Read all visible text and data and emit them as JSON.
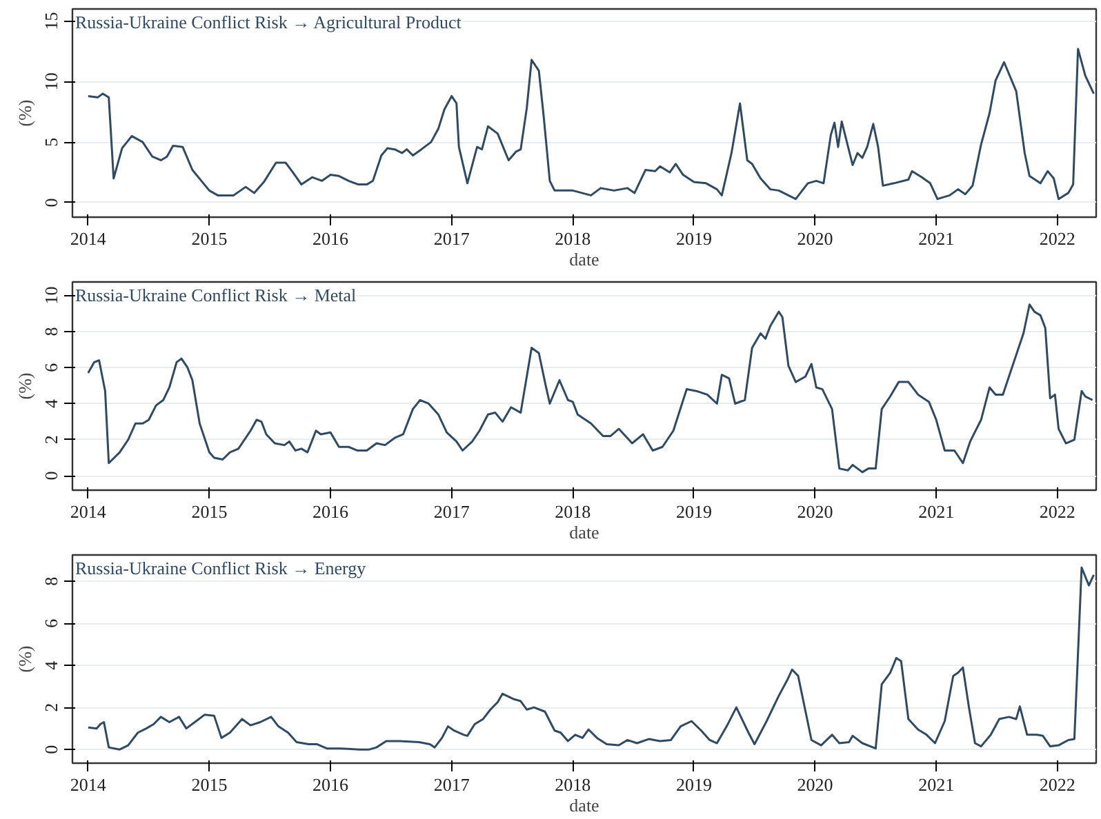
{
  "chart_data": [
    {
      "type": "line",
      "title": "Russia-Ukraine Conflict Risk → Agricultural Product",
      "xlabel": "date",
      "ylabel": "(%)",
      "color": "#2f4a63",
      "grid": "y",
      "xlim": [
        2013.87,
        2022.32
      ],
      "ylim": [
        -1.2,
        16
      ],
      "xticks": [
        2014,
        2015,
        2016,
        2017,
        2018,
        2019,
        2020,
        2021,
        2022
      ],
      "yticks": [
        0,
        5,
        10,
        15
      ],
      "x": [
        2014.0,
        2014.08,
        2014.12,
        2014.17,
        2014.21,
        2014.28,
        2014.36,
        2014.45,
        2014.53,
        2014.6,
        2014.65,
        2014.7,
        2014.78,
        2014.86,
        2015.0,
        2015.07,
        2015.2,
        2015.3,
        2015.37,
        2015.45,
        2015.55,
        2015.63,
        2015.69,
        2015.76,
        2015.85,
        2015.93,
        2016.0,
        2016.07,
        2016.15,
        2016.23,
        2016.3,
        2016.35,
        2016.42,
        2016.47,
        2016.53,
        2016.59,
        2016.63,
        2016.68,
        2016.75,
        2016.83,
        2016.89,
        2016.94,
        2017.0,
        2017.04,
        2017.06,
        2017.13,
        2017.21,
        2017.25,
        2017.3,
        2017.38,
        2017.47,
        2017.53,
        2017.57,
        2017.62,
        2017.66,
        2017.72,
        2017.76,
        2017.81,
        2017.85,
        2018.0,
        2018.15,
        2018.23,
        2018.34,
        2018.45,
        2018.51,
        2018.6,
        2018.68,
        2018.72,
        2018.8,
        2018.85,
        2018.91,
        2019.0,
        2019.1,
        2019.19,
        2019.23,
        2019.31,
        2019.38,
        2019.44,
        2019.48,
        2019.55,
        2019.63,
        2019.7,
        2019.84,
        2019.94,
        2020.01,
        2020.07,
        2020.13,
        2020.16,
        2020.19,
        2020.22,
        2020.31,
        2020.35,
        2020.39,
        2020.43,
        2020.48,
        2020.52,
        2020.56,
        2020.65,
        2020.77,
        2020.8,
        2020.88,
        2020.95,
        2021.01,
        2021.11,
        2021.18,
        2021.24,
        2021.3,
        2021.37,
        2021.44,
        2021.49,
        2021.56,
        2021.66,
        2021.73,
        2021.77,
        2021.86,
        2021.92,
        2021.97,
        2022.01,
        2022.09,
        2022.13,
        2022.17,
        2022.23,
        2022.3
      ],
      "values": [
        8.8,
        8.7,
        9.0,
        8.7,
        2.0,
        4.5,
        5.5,
        5.0,
        3.8,
        3.5,
        3.8,
        4.7,
        4.6,
        2.7,
        1.0,
        0.6,
        0.6,
        1.3,
        0.8,
        1.7,
        3.3,
        3.3,
        2.5,
        1.5,
        2.1,
        1.8,
        2.3,
        2.2,
        1.8,
        1.5,
        1.5,
        1.8,
        3.9,
        4.5,
        4.4,
        4.1,
        4.4,
        3.9,
        4.4,
        5.0,
        6.1,
        7.7,
        8.8,
        8.2,
        4.6,
        1.6,
        4.6,
        4.4,
        6.3,
        5.7,
        3.5,
        4.2,
        4.4,
        7.8,
        11.8,
        10.9,
        7.1,
        1.8,
        1.0,
        1.0,
        0.6,
        1.2,
        1.0,
        1.2,
        0.8,
        2.7,
        2.6,
        3.0,
        2.5,
        3.2,
        2.3,
        1.7,
        1.6,
        1.1,
        0.6,
        4.1,
        8.2,
        3.5,
        3.2,
        2.0,
        1.1,
        1.0,
        0.3,
        1.6,
        1.8,
        1.6,
        5.6,
        6.6,
        4.6,
        6.7,
        3.1,
        4.1,
        3.7,
        4.6,
        6.5,
        4.6,
        1.4,
        1.6,
        1.9,
        2.6,
        2.1,
        1.6,
        0.3,
        0.6,
        1.1,
        0.7,
        1.4,
        4.8,
        7.4,
        10.1,
        11.6,
        9.2,
        4.1,
        2.2,
        1.6,
        2.6,
        2.0,
        0.3,
        0.8,
        1.5,
        12.7,
        10.5,
        9.0
      ]
    },
    {
      "type": "line",
      "title": "Russia-Ukraine Conflict Risk → Metal",
      "xlabel": "date",
      "ylabel": "(%)",
      "color": "#2f4a63",
      "grid": "y",
      "xlim": [
        2013.87,
        2022.32
      ],
      "ylim": [
        -0.8,
        10.75
      ],
      "xticks": [
        2014,
        2015,
        2016,
        2017,
        2018,
        2019,
        2020,
        2021,
        2022
      ],
      "yticks": [
        0,
        2,
        4,
        6,
        8,
        10
      ],
      "x": [
        2014.0,
        2014.05,
        2014.09,
        2014.14,
        2014.17,
        2014.26,
        2014.33,
        2014.39,
        2014.45,
        2014.5,
        2014.56,
        2014.62,
        2014.67,
        2014.73,
        2014.77,
        2014.82,
        2014.86,
        2014.92,
        2015.0,
        2015.04,
        2015.11,
        2015.17,
        2015.24,
        2015.34,
        2015.39,
        2015.43,
        2015.47,
        2015.54,
        2015.62,
        2015.66,
        2015.71,
        2015.76,
        2015.81,
        2015.88,
        2015.92,
        2016.0,
        2016.07,
        2016.15,
        2016.22,
        2016.3,
        2016.38,
        2016.45,
        2016.53,
        2016.6,
        2016.68,
        2016.74,
        2016.81,
        2016.89,
        2016.96,
        2017.04,
        2017.09,
        2017.17,
        2017.23,
        2017.3,
        2017.36,
        2017.42,
        2017.49,
        2017.57,
        2017.66,
        2017.72,
        2017.77,
        2017.81,
        2017.89,
        2017.96,
        2018.0,
        2018.04,
        2018.15,
        2018.25,
        2018.31,
        2018.38,
        2018.49,
        2018.58,
        2018.66,
        2018.74,
        2018.83,
        2018.94,
        2019.02,
        2019.11,
        2019.19,
        2019.23,
        2019.29,
        2019.34,
        2019.42,
        2019.48,
        2019.55,
        2019.59,
        2019.63,
        2019.7,
        2019.73,
        2019.78,
        2019.84,
        2019.92,
        2019.97,
        2020.01,
        2020.06,
        2020.14,
        2020.2,
        2020.27,
        2020.31,
        2020.39,
        2020.44,
        2020.5,
        2020.55,
        2020.62,
        2020.69,
        2020.77,
        2020.85,
        2020.94,
        2021.0,
        2021.07,
        2021.15,
        2021.22,
        2021.28,
        2021.37,
        2021.44,
        2021.49,
        2021.55,
        2021.6,
        2021.72,
        2021.77,
        2021.81,
        2021.86,
        2021.9,
        2021.94,
        2021.98,
        2022.01,
        2022.07,
        2022.14,
        2022.2,
        2022.23,
        2022.29
      ],
      "values": [
        5.7,
        6.3,
        6.4,
        4.7,
        0.7,
        1.3,
        2.0,
        2.9,
        2.9,
        3.1,
        3.9,
        4.2,
        4.9,
        6.3,
        6.5,
        6.0,
        5.3,
        2.9,
        1.3,
        1.0,
        0.9,
        1.3,
        1.5,
        2.5,
        3.1,
        3.0,
        2.3,
        1.8,
        1.7,
        1.9,
        1.4,
        1.5,
        1.3,
        2.5,
        2.3,
        2.4,
        1.6,
        1.6,
        1.4,
        1.4,
        1.8,
        1.7,
        2.1,
        2.3,
        3.7,
        4.2,
        4.0,
        3.4,
        2.4,
        1.9,
        1.4,
        1.9,
        2.5,
        3.4,
        3.5,
        3.0,
        3.8,
        3.5,
        7.1,
        6.8,
        5.2,
        4.0,
        5.3,
        4.2,
        4.1,
        3.4,
        2.9,
        2.2,
        2.2,
        2.6,
        1.8,
        2.3,
        1.4,
        1.6,
        2.5,
        4.8,
        4.7,
        4.5,
        4.0,
        5.6,
        5.4,
        4.0,
        4.2,
        7.1,
        7.9,
        7.6,
        8.3,
        9.1,
        8.8,
        6.1,
        5.2,
        5.5,
        6.2,
        4.9,
        4.8,
        3.7,
        0.4,
        0.3,
        0.6,
        0.2,
        0.4,
        0.4,
        3.7,
        4.4,
        5.2,
        5.2,
        4.5,
        4.1,
        3.1,
        1.4,
        1.4,
        0.7,
        1.9,
        3.1,
        4.9,
        4.5,
        4.5,
        5.5,
        7.9,
        9.5,
        9.1,
        8.9,
        8.2,
        4.3,
        4.5,
        2.6,
        1.8,
        2.0,
        4.7,
        4.4,
        4.2
      ]
    },
    {
      "type": "line",
      "title": "Russia-Ukraine Conflict Risk → Energy",
      "xlabel": "date",
      "ylabel": "(%)",
      "color": "#2f4a63",
      "grid": "y",
      "xlim": [
        2013.87,
        2022.32
      ],
      "ylim": [
        -0.65,
        9.25
      ],
      "xticks": [
        2014,
        2015,
        2016,
        2017,
        2018,
        2019,
        2020,
        2021,
        2022
      ],
      "yticks": [
        0,
        2,
        4,
        6,
        8
      ],
      "x": [
        2014.0,
        2014.07,
        2014.1,
        2014.13,
        2014.17,
        2014.26,
        2014.33,
        2014.41,
        2014.48,
        2014.54,
        2014.6,
        2014.67,
        2014.75,
        2014.81,
        2014.88,
        2014.96,
        2015.04,
        2015.1,
        2015.17,
        2015.27,
        2015.34,
        2015.42,
        2015.51,
        2015.57,
        2015.65,
        2015.72,
        2015.82,
        2015.89,
        2015.97,
        2016.08,
        2016.24,
        2016.32,
        2016.38,
        2016.46,
        2016.57,
        2016.73,
        2016.82,
        2016.86,
        2016.92,
        2016.97,
        2017.02,
        2017.1,
        2017.13,
        2017.19,
        2017.26,
        2017.32,
        2017.38,
        2017.42,
        2017.51,
        2017.57,
        2017.62,
        2017.68,
        2017.77,
        2017.85,
        2017.9,
        2017.96,
        2018.02,
        2018.08,
        2018.13,
        2018.2,
        2018.28,
        2018.38,
        2018.45,
        2018.53,
        2018.63,
        2018.72,
        2018.81,
        2018.89,
        2018.98,
        2019.06,
        2019.13,
        2019.19,
        2019.27,
        2019.35,
        2019.45,
        2019.5,
        2019.6,
        2019.7,
        2019.77,
        2019.81,
        2019.86,
        2019.97,
        2020.05,
        2020.14,
        2020.2,
        2020.28,
        2020.31,
        2020.39,
        2020.5,
        2020.55,
        2020.62,
        2020.67,
        2020.71,
        2020.77,
        2020.85,
        2020.92,
        2020.99,
        2021.07,
        2021.14,
        2021.18,
        2021.22,
        2021.27,
        2021.32,
        2021.37,
        2021.45,
        2021.52,
        2021.6,
        2021.66,
        2021.69,
        2021.75,
        2021.83,
        2021.88,
        2021.94,
        2022.01,
        2022.09,
        2022.14,
        2022.2,
        2022.26,
        2022.3
      ],
      "values": [
        1.05,
        1.0,
        1.2,
        1.3,
        0.1,
        0.0,
        0.2,
        0.8,
        1.0,
        1.2,
        1.55,
        1.3,
        1.55,
        1.0,
        1.3,
        1.65,
        1.6,
        0.55,
        0.8,
        1.45,
        1.15,
        1.3,
        1.55,
        1.1,
        0.8,
        0.35,
        0.25,
        0.25,
        0.05,
        0.05,
        0.0,
        0.0,
        0.1,
        0.4,
        0.4,
        0.35,
        0.25,
        0.1,
        0.55,
        1.1,
        0.9,
        0.7,
        0.65,
        1.2,
        1.45,
        1.9,
        2.25,
        2.65,
        2.4,
        2.3,
        1.9,
        2.0,
        1.8,
        0.9,
        0.8,
        0.4,
        0.7,
        0.55,
        0.95,
        0.55,
        0.25,
        0.2,
        0.45,
        0.3,
        0.5,
        0.4,
        0.45,
        1.1,
        1.35,
        0.9,
        0.45,
        0.3,
        1.1,
        2.0,
        0.8,
        0.25,
        1.35,
        2.55,
        3.3,
        3.8,
        3.5,
        0.45,
        0.2,
        0.7,
        0.3,
        0.35,
        0.65,
        0.3,
        0.05,
        3.1,
        3.65,
        4.35,
        4.2,
        1.45,
        0.95,
        0.7,
        0.3,
        1.35,
        3.5,
        3.65,
        3.9,
        2.0,
        0.3,
        0.15,
        0.7,
        1.45,
        1.55,
        1.45,
        2.05,
        0.7,
        0.7,
        0.65,
        0.15,
        0.2,
        0.45,
        0.5,
        8.65,
        7.8,
        8.3
      ]
    }
  ]
}
